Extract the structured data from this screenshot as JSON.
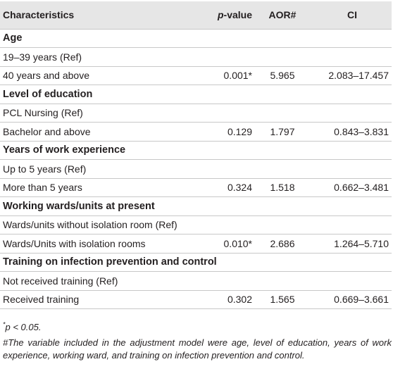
{
  "table": {
    "headers": {
      "characteristics": "Characteristics",
      "p_value_italic": "p",
      "p_value_rest": "-value",
      "aor": "AOR#",
      "ci": "CI"
    },
    "sections": [
      {
        "title": "Age",
        "rows": [
          {
            "label": "19–39 years (Ref)",
            "p": "",
            "aor": "",
            "ci": ""
          },
          {
            "label": "40 years and above",
            "p": "0.001*",
            "aor": "5.965",
            "ci": "2.083–17.457"
          }
        ]
      },
      {
        "title": "Level of education",
        "rows": [
          {
            "label": "PCL Nursing (Ref)",
            "p": "",
            "aor": "",
            "ci": ""
          },
          {
            "label": "Bachelor and above",
            "p": "0.129",
            "aor": "1.797",
            "ci": "0.843–3.831"
          }
        ]
      },
      {
        "title": "Years of work experience",
        "rows": [
          {
            "label": "Up to 5 years (Ref)",
            "p": "",
            "aor": "",
            "ci": ""
          },
          {
            "label": "More than 5 years",
            "p": "0.324",
            "aor": "1.518",
            "ci": "0.662–3.481"
          }
        ]
      },
      {
        "title": "Working wards/units at present",
        "rows": [
          {
            "label": "Wards/units without isolation room (Ref)",
            "p": "",
            "aor": "",
            "ci": ""
          },
          {
            "label": "Wards/Units with isolation rooms",
            "p": "0.010*",
            "aor": "2.686",
            "ci": "1.264–5.710"
          }
        ]
      },
      {
        "title": "Training on infection prevention and control",
        "rows": [
          {
            "label": "Not received training (Ref)",
            "p": "",
            "aor": "",
            "ci": ""
          },
          {
            "label": "Received training",
            "p": "0.302",
            "aor": "1.565",
            "ci": "0.669–3.661"
          }
        ]
      }
    ]
  },
  "footnotes": {
    "sig_mark": "*",
    "sig_text": "p < 0.05.",
    "adj_text": "#The variable included in the adjustment model were age, level of education, years of work experience, working ward, and training on infection prevention and control."
  }
}
